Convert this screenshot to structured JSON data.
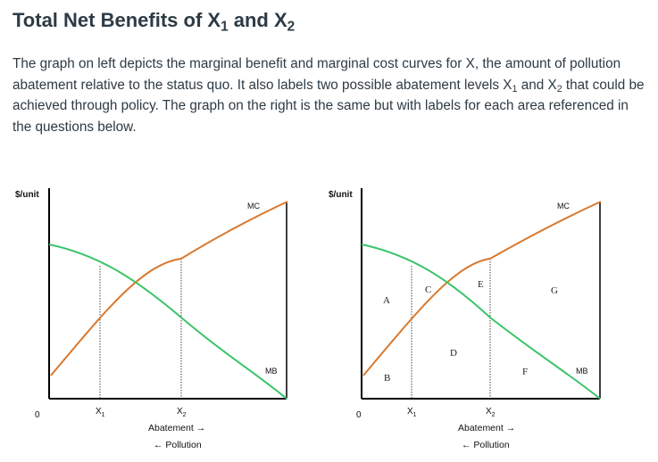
{
  "heading": {
    "prefix": "Total Net Benefits of X",
    "sub1": "1",
    "mid": " and X",
    "sub2": "2"
  },
  "intro": {
    "p1": "The graph on left depicts the marginal benefit and marginal cost curves for X, the amount of pollution abatement relative to the status quo. It also labels two possible abatement levels X",
    "sub1": "1",
    "p2": " and X",
    "sub2": "2",
    "p3": " that could be achieved through policy.  The graph on the right is the same but with labels for each area referenced in the questions below."
  },
  "colors": {
    "mc": "#d9782d",
    "mb": "#3cc46a",
    "axis": "#000000"
  },
  "graphs": [
    {
      "y_axis_label": "$/unit",
      "origin": "0",
      "x1_main": "X",
      "x1_sub": "1",
      "x2_main": "X",
      "x2_sub": "2",
      "mc_label": "MC",
      "mb_label": "MB",
      "x_caption": "Abatement →",
      "x_caption2": "← Pollution"
    },
    {
      "y_axis_label": "$/unit",
      "origin": "0",
      "x1_main": "X",
      "x1_sub": "1",
      "x2_main": "X",
      "x2_sub": "2",
      "mc_label": "MC",
      "mb_label": "MB",
      "x_caption": "Abatement →",
      "x_caption2": "← Pollution",
      "areas": {
        "a": "A",
        "b": "B",
        "c": "C",
        "d": "D",
        "e": "E",
        "f": "F",
        "g": "G"
      }
    }
  ]
}
